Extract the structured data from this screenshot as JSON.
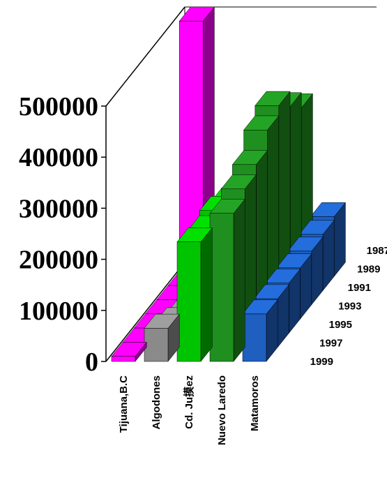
{
  "chart_data": {
    "type": "bar3d",
    "categories": [
      "Tijuana,B.C",
      "Algodones",
      "Cd. Ju摸ez",
      "Nuevo Laredo",
      "Matamoros"
    ],
    "ylim": [
      0,
      500000
    ],
    "yticks": [
      0,
      100000,
      200000,
      300000,
      400000,
      500000
    ],
    "series": [
      {
        "name": "1987",
        "values": [
          500000,
          30000,
          200000,
          330000,
          117000
        ]
      },
      {
        "name": "1989",
        "values": [
          10000,
          30000,
          210000,
          360000,
          110000
        ]
      },
      {
        "name": "1991",
        "values": [
          10000,
          32000,
          220000,
          390000,
          105000
        ]
      },
      {
        "name": "1993",
        "values": [
          10000,
          35000,
          230000,
          370000,
          100000
        ]
      },
      {
        "name": "1995",
        "values": [
          10000,
          40000,
          240000,
          330000,
          98000
        ]
      },
      {
        "name": "1997",
        "values": [
          10000,
          50000,
          230000,
          310000,
          95000
        ]
      },
      {
        "name": "1999",
        "values": [
          10000,
          65000,
          234000,
          290000,
          93000
        ]
      }
    ],
    "colors": [
      "#ff00ff",
      "#8a8a8a",
      "#00c400",
      "#1f8f1f",
      "#1e5fbf"
    ]
  }
}
